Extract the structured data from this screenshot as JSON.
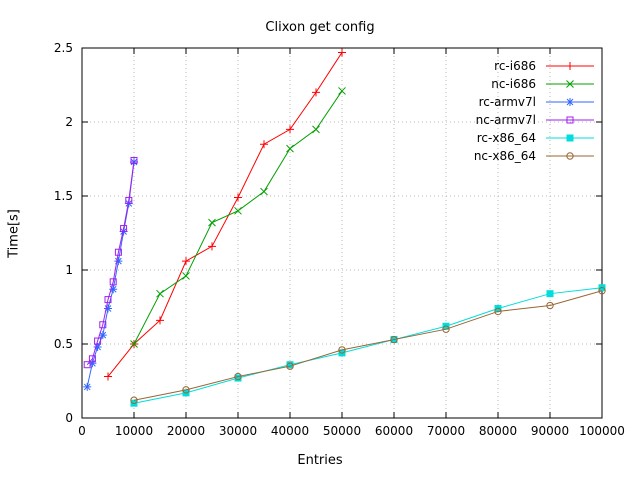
{
  "title": "Clixon get config",
  "chart_data": {
    "type": "line",
    "title": "Clixon get config",
    "xlabel": "Entries",
    "ylabel": "Time[s]",
    "xlim": [
      0,
      100000
    ],
    "ylim": [
      0,
      2.5
    ],
    "xticks": [
      0,
      10000,
      20000,
      30000,
      40000,
      50000,
      60000,
      70000,
      80000,
      90000,
      100000
    ],
    "yticks": [
      0,
      0.5,
      1,
      1.5,
      2,
      2.5
    ],
    "grid": true,
    "legend_position": "top-right",
    "series": [
      {
        "name": "rc-i686",
        "color": "#ff0000",
        "marker": "plus",
        "x": [
          5000,
          10000,
          15000,
          20000,
          25000,
          30000,
          35000,
          40000,
          45000,
          50000
        ],
        "y": [
          0.28,
          0.5,
          0.66,
          1.06,
          1.16,
          1.49,
          1.85,
          1.95,
          2.2,
          2.47
        ]
      },
      {
        "name": "nc-i686",
        "color": "#00a000",
        "marker": "cross",
        "x": [
          10000,
          15000,
          20000,
          25000,
          30000,
          35000,
          40000,
          45000,
          50000
        ],
        "y": [
          0.5,
          0.84,
          0.96,
          1.32,
          1.4,
          1.53,
          1.82,
          1.95,
          2.21
        ]
      },
      {
        "name": "rc-armv7l",
        "color": "#3366ff",
        "marker": "asterisk",
        "x": [
          1000,
          2000,
          3000,
          4000,
          5000,
          6000,
          7000,
          8000,
          9000,
          10000
        ],
        "y": [
          0.21,
          0.37,
          0.48,
          0.56,
          0.74,
          0.87,
          1.06,
          1.26,
          1.45,
          1.73
        ]
      },
      {
        "name": "nc-armv7l",
        "color": "#a020f0",
        "marker": "square-open",
        "x": [
          1000,
          2000,
          3000,
          4000,
          5000,
          6000,
          7000,
          8000,
          9000,
          10000
        ],
        "y": [
          0.36,
          0.4,
          0.52,
          0.63,
          0.8,
          0.92,
          1.12,
          1.28,
          1.47,
          1.74
        ]
      },
      {
        "name": "rc-x86_64",
        "color": "#00dddd",
        "marker": "square-filled",
        "x": [
          10000,
          20000,
          30000,
          40000,
          50000,
          60000,
          70000,
          80000,
          90000,
          100000
        ],
        "y": [
          0.1,
          0.17,
          0.27,
          0.36,
          0.44,
          0.53,
          0.62,
          0.74,
          0.84,
          0.88
        ]
      },
      {
        "name": "nc-x86_64",
        "color": "#996633",
        "marker": "circle-open",
        "x": [
          10000,
          20000,
          30000,
          40000,
          50000,
          60000,
          70000,
          80000,
          90000,
          100000
        ],
        "y": [
          0.12,
          0.19,
          0.28,
          0.35,
          0.46,
          0.53,
          0.6,
          0.72,
          0.76,
          0.86
        ]
      }
    ]
  }
}
